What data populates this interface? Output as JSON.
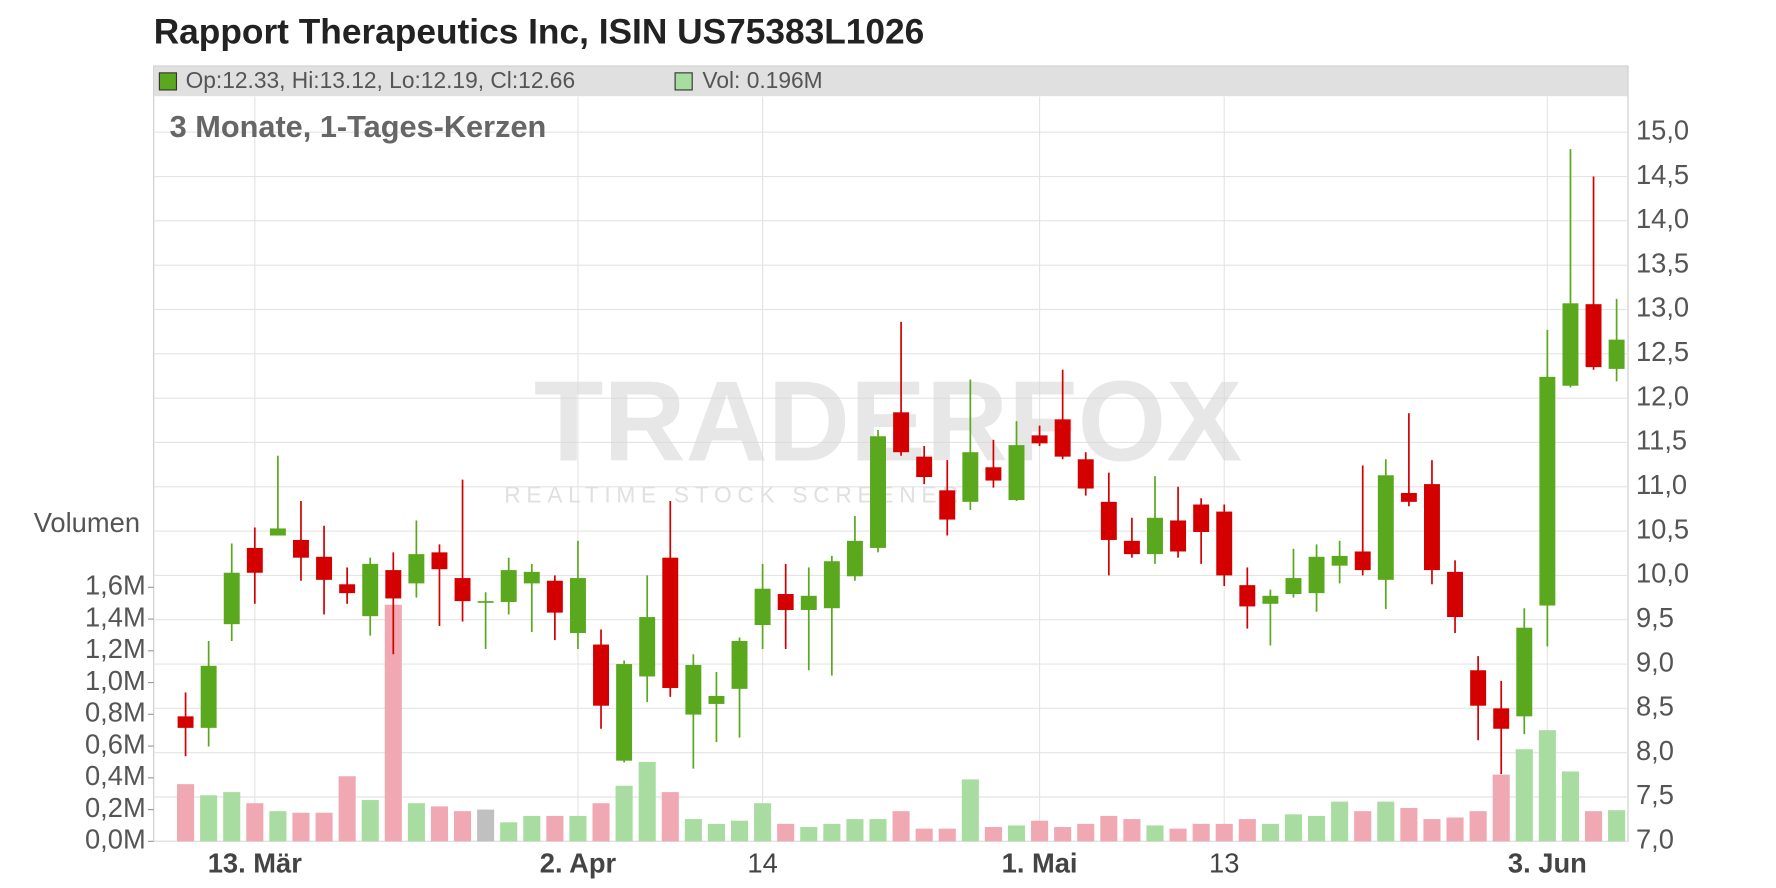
{
  "chart_data": {
    "type": "candlestick",
    "title": "Rapport Therapeutics Inc, ISIN US75383L1026",
    "subtitle": "3 Monate, 1-Tages-Kerzen",
    "legend": [
      "Op:12.33, Hi:13.12, Lo:12.19, Cl:12.66",
      "Vol: 0.196M"
    ],
    "volume_axis_label": "Volumen",
    "watermark": "TRADERFOX",
    "watermark_sub": "REALTIME STOCK SCREENER",
    "categories": [
      null,
      null,
      null,
      "13. Mär",
      null,
      null,
      null,
      null,
      null,
      null,
      null,
      null,
      null,
      null,
      null,
      null,
      null,
      "2. Apr",
      null,
      null,
      null,
      null,
      null,
      null,
      null,
      "14",
      null,
      null,
      null,
      null,
      null,
      null,
      null,
      null,
      null,
      null,
      null,
      "1. Mai",
      null,
      null,
      null,
      null,
      null,
      null,
      null,
      "13",
      null,
      null,
      null,
      null,
      null,
      null,
      null,
      null,
      null,
      null,
      null,
      null,
      null,
      "3. Jun",
      null,
      null,
      null
    ],
    "open": [
      8.41,
      8.28,
      9.45,
      10.31,
      10.45,
      10.4,
      10.21,
      9.9,
      9.54,
      10.06,
      9.91,
      10.26,
      9.97,
      9.71,
      9.7,
      9.91,
      9.94,
      9.35,
      9.22,
      7.91,
      8.86,
      10.2,
      8.43,
      8.55,
      8.72,
      9.44,
      9.79,
      9.61,
      9.63,
      9.99,
      10.31,
      11.84,
      11.34,
      10.96,
      10.83,
      11.22,
      10.85,
      11.58,
      11.76,
      11.31,
      10.83,
      10.39,
      10.24,
      10.62,
      10.8,
      10.72,
      9.89,
      9.68,
      9.79,
      9.8,
      10.11,
      10.27,
      9.95,
      10.93,
      11.03,
      10.04,
      8.93,
      8.5,
      8.41,
      9.66,
      12.14,
      13.06,
      12.33
    ],
    "high": [
      8.68,
      9.26,
      10.36,
      10.54,
      11.35,
      10.84,
      10.56,
      10.09,
      10.2,
      10.26,
      10.62,
      10.35,
      11.08,
      9.81,
      10.2,
      10.13,
      10.0,
      10.39,
      9.39,
      9.04,
      10.0,
      10.84,
      9.11,
      8.91,
      9.3,
      10.13,
      10.13,
      10.09,
      10.22,
      10.67,
      11.64,
      12.86,
      11.46,
      11.3,
      12.21,
      11.53,
      11.74,
      11.69,
      12.32,
      11.39,
      11.16,
      10.65,
      11.12,
      11.0,
      10.87,
      10.8,
      10.09,
      9.84,
      10.3,
      10.35,
      10.39,
      11.24,
      11.31,
      11.83,
      11.3,
      10.17,
      9.09,
      8.81,
      9.63,
      12.77,
      14.81,
      14.5,
      13.12
    ],
    "low": [
      7.96,
      8.07,
      9.26,
      9.68,
      10.45,
      9.94,
      9.56,
      9.68,
      9.32,
      9.11,
      9.75,
      9.43,
      9.48,
      9.17,
      9.56,
      9.36,
      9.27,
      9.17,
      8.27,
      7.89,
      8.57,
      8.63,
      7.82,
      8.12,
      8.17,
      9.17,
      9.17,
      8.93,
      8.87,
      9.94,
      10.26,
      11.35,
      11.03,
      10.45,
      10.74,
      10.99,
      10.84,
      11.46,
      11.31,
      10.9,
      10.0,
      10.2,
      10.13,
      10.2,
      10.13,
      9.88,
      9.4,
      9.21,
      9.75,
      9.59,
      9.91,
      10.0,
      9.62,
      10.78,
      9.9,
      9.35,
      8.14,
      7.76,
      8.21,
      9.2,
      12.12,
      12.32,
      12.19
    ],
    "close": [
      8.28,
      8.98,
      10.03,
      10.03,
      10.53,
      10.2,
      9.95,
      9.8,
      10.13,
      9.74,
      10.24,
      10.07,
      9.71,
      9.71,
      10.06,
      10.04,
      9.58,
      9.97,
      8.53,
      9.0,
      9.53,
      8.73,
      8.99,
      8.64,
      9.26,
      9.85,
      9.61,
      9.77,
      10.16,
      10.39,
      11.57,
      11.39,
      11.11,
      10.63,
      11.39,
      11.07,
      11.47,
      11.49,
      11.34,
      10.98,
      10.4,
      10.24,
      10.65,
      10.27,
      10.49,
      10.0,
      9.65,
      9.77,
      9.97,
      10.21,
      10.22,
      10.06,
      11.13,
      10.83,
      10.06,
      9.53,
      8.53,
      8.27,
      9.41,
      12.24,
      13.07,
      12.35,
      12.66
    ],
    "volume": [
      0.36,
      0.29,
      0.31,
      0.24,
      0.19,
      0.18,
      0.18,
      0.41,
      0.26,
      1.49,
      0.24,
      0.22,
      0.19,
      0.2,
      0.12,
      0.16,
      0.16,
      0.16,
      0.24,
      0.35,
      0.5,
      0.31,
      0.14,
      0.11,
      0.13,
      0.24,
      0.11,
      0.09,
      0.11,
      0.14,
      0.14,
      0.19,
      0.08,
      0.08,
      0.39,
      0.09,
      0.1,
      0.13,
      0.09,
      0.11,
      0.16,
      0.14,
      0.1,
      0.08,
      0.11,
      0.11,
      0.14,
      0.11,
      0.17,
      0.16,
      0.25,
      0.19,
      0.25,
      0.21,
      0.14,
      0.15,
      0.19,
      0.42,
      0.58,
      0.7,
      0.44,
      0.19,
      0.196
    ],
    "ylim": [
      7,
      15.4
    ],
    "yticks": [
      {
        "value": 7,
        "label": "7,0"
      },
      {
        "value": 7.5,
        "label": "7,5"
      },
      {
        "value": 8,
        "label": "8,0"
      },
      {
        "value": 8.5,
        "label": "8,5"
      },
      {
        "value": 9,
        "label": "9,0"
      },
      {
        "value": 9.5,
        "label": "9,5"
      },
      {
        "value": 10,
        "label": "10,0"
      },
      {
        "value": 10.5,
        "label": "10,5"
      },
      {
        "value": 11,
        "label": "11,0"
      },
      {
        "value": 11.5,
        "label": "11,5"
      },
      {
        "value": 12,
        "label": "12,0"
      },
      {
        "value": 12.5,
        "label": "12,5"
      },
      {
        "value": 13,
        "label": "13,0"
      },
      {
        "value": 13.5,
        "label": "13,5"
      },
      {
        "value": 14,
        "label": "14,0"
      },
      {
        "value": 14.5,
        "label": "14,5"
      },
      {
        "value": 15,
        "label": "15,0"
      }
    ],
    "y2lim": [
      0,
      4.69
    ],
    "y2ticks": [
      {
        "value": 0,
        "label": "0,0M"
      },
      {
        "value": 0.2,
        "label": "0,2M"
      },
      {
        "value": 0.4,
        "label": "0,4M"
      },
      {
        "value": 0.6,
        "label": "0,6M"
      },
      {
        "value": 0.8,
        "label": "0,8M"
      },
      {
        "value": 1.0,
        "label": "1,0M"
      },
      {
        "value": 1.2,
        "label": "1,2M"
      },
      {
        "value": 1.4,
        "label": "1,4M"
      },
      {
        "value": 1.6,
        "label": "1,6M"
      }
    ],
    "grid": true,
    "up_color": "#5aa81e",
    "down_color": "#d40000",
    "volume_up_color": "#a8dca0",
    "volume_down_color": "#f0a8b2",
    "volume_flat_color": "#c0c0c0"
  }
}
